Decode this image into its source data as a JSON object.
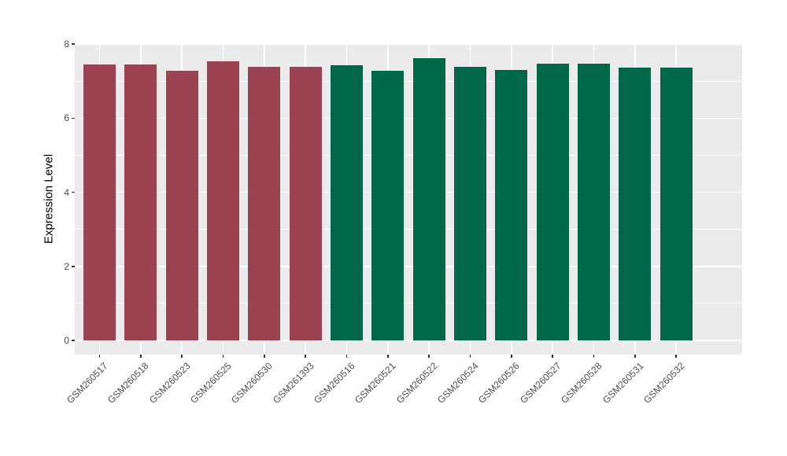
{
  "chart_data": {
    "type": "bar",
    "title": "",
    "xlabel": "",
    "ylabel": "Expression Level",
    "ylim": [
      0,
      8
    ],
    "yticks": [
      0,
      2,
      4,
      6,
      8
    ],
    "yticks_minor": [
      1,
      3,
      5,
      7
    ],
    "grid": true,
    "legend_position": "none",
    "categories": [
      "GSM260517",
      "GSM260518",
      "GSM260523",
      "GSM260525",
      "GSM260530",
      "GSM261393",
      "GSM260516",
      "GSM260521",
      "GSM260522",
      "GSM260524",
      "GSM260526",
      "GSM260527",
      "GSM260528",
      "GSM260531",
      "GSM260532"
    ],
    "values": [
      7.45,
      7.45,
      7.28,
      7.54,
      7.39,
      7.38,
      7.42,
      7.27,
      7.61,
      7.38,
      7.31,
      7.47,
      7.47,
      7.36,
      7.36
    ],
    "bar_colors": [
      "#9B4352",
      "#9B4352",
      "#9B4352",
      "#9B4352",
      "#9B4352",
      "#9B4352",
      "#006848",
      "#006848",
      "#006848",
      "#006848",
      "#006848",
      "#006848",
      "#006848",
      "#006848",
      "#006848"
    ],
    "colors": {
      "bar_group_1": "#9B4352",
      "bar_group_2": "#006848",
      "panel_background": "#EBEBEB",
      "gridline": "#FFFFFF",
      "axis_text": "#4D4D4D",
      "tick_mark": "#333333",
      "figure_background": "#FFFFFF"
    }
  }
}
